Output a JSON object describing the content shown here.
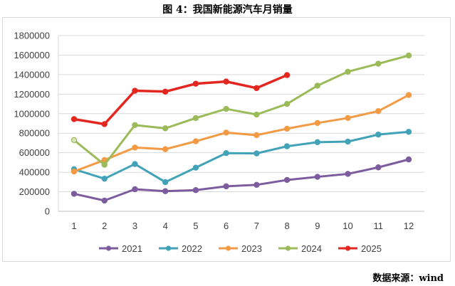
{
  "title": "图 4：我国新能源汽车月销量",
  "source": "数据来源：wind",
  "chart_data": {
    "type": "line",
    "title": "图 4：我国新能源汽车月销量",
    "x": [
      1,
      2,
      3,
      4,
      5,
      6,
      7,
      8,
      9,
      10,
      11,
      12
    ],
    "xlim": [
      1,
      12
    ],
    "ylim": [
      0,
      1800000
    ],
    "yticks": [
      0,
      200000,
      400000,
      600000,
      800000,
      1000000,
      1200000,
      1400000,
      1600000,
      1800000
    ],
    "ytick_labels": [
      "0",
      "200000",
      "400000",
      "600000",
      "800000",
      "1000000",
      "1200000",
      "1400000",
      "1600000",
      "1800000"
    ],
    "grid": true,
    "legend_position": "bottom",
    "series": [
      {
        "name": "2021",
        "color": "#7c5c9e",
        "values": [
          179000,
          110000,
          226000,
          206000,
          217000,
          256000,
          271000,
          321000,
          353000,
          383000,
          450000,
          531000
        ]
      },
      {
        "name": "2022",
        "color": "#42a3b8",
        "values": [
          431000,
          334000,
          484000,
          299000,
          447000,
          596000,
          593000,
          666000,
          708000,
          714000,
          786000,
          814000
        ]
      },
      {
        "name": "2023",
        "color": "#f39a45",
        "values": [
          408000,
          525000,
          653000,
          636000,
          717000,
          806000,
          780000,
          846000,
          904000,
          956000,
          1026000,
          1191000
        ]
      },
      {
        "name": "2024",
        "color": "#9bbb59",
        "values": [
          729000,
          477000,
          883000,
          850000,
          955000,
          1049000,
          991000,
          1100000,
          1287000,
          1430000,
          1512000,
          1596000
        ]
      },
      {
        "name": "2025",
        "color": "#e3261f",
        "values": [
          944000,
          893000,
          1235000,
          1226000,
          1307000,
          1329000,
          1262000,
          1395000,
          null,
          null,
          null,
          null
        ]
      }
    ]
  }
}
